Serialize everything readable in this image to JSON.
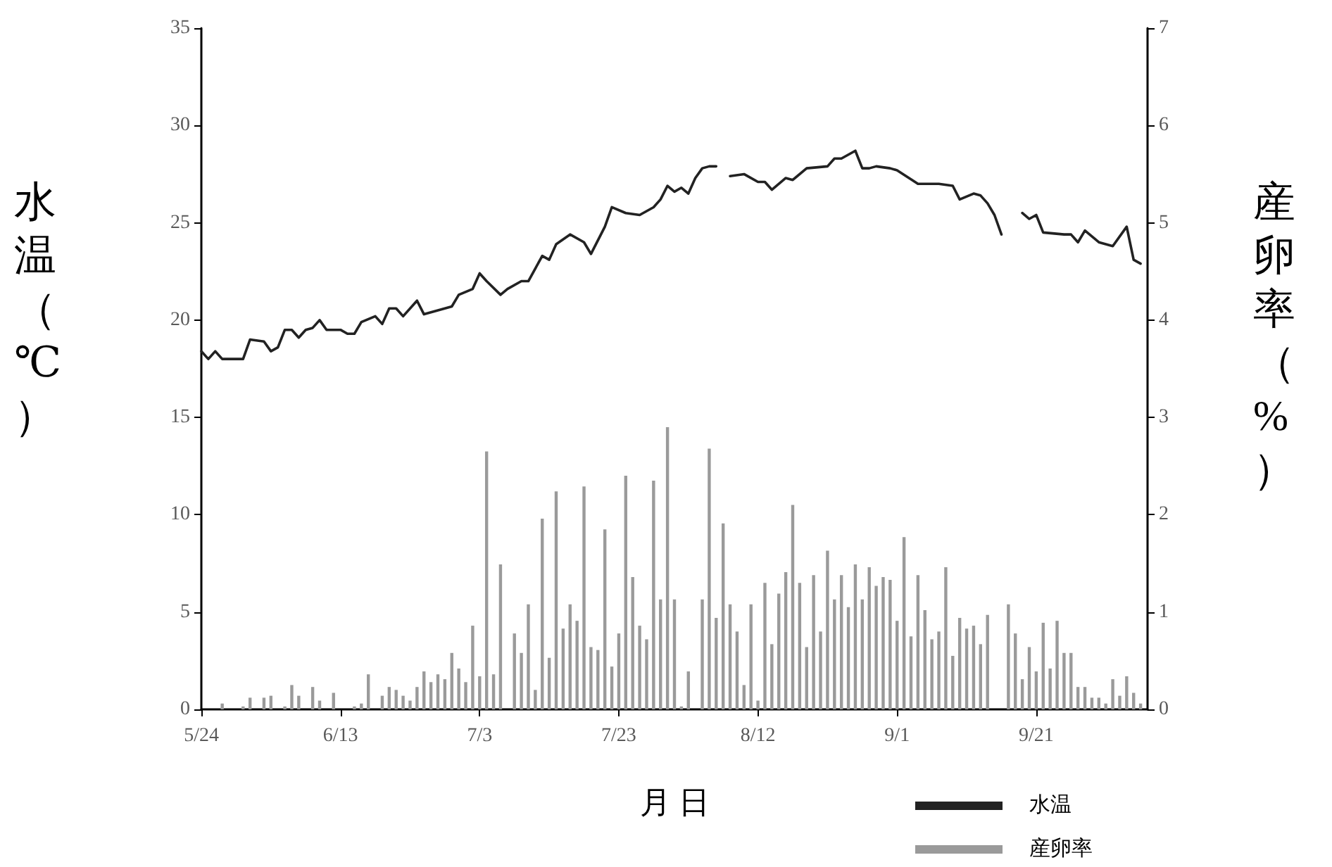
{
  "chart_data": {
    "type": "line",
    "xlabel": "月 日",
    "ylabel": "水温（℃）",
    "y2label": "産卵率（%）",
    "xlim": [
      "--05-24",
      "--10-07"
    ],
    "xticks": [
      {
        "value": "--05-24",
        "label": "5/24"
      },
      {
        "value": "--06-13",
        "label": "6/13"
      },
      {
        "value": "--07-03",
        "label": "7/3"
      },
      {
        "value": "--07-23",
        "label": "7/23"
      },
      {
        "value": "--08-12",
        "label": "8/12"
      },
      {
        "value": "--09-01",
        "label": "9/1"
      },
      {
        "value": "--09-21",
        "label": "9/21"
      }
    ],
    "ylim": [
      0,
      35
    ],
    "yticks": [
      0,
      5,
      10,
      15,
      20,
      25,
      30,
      35
    ],
    "y2lim": [
      0,
      7
    ],
    "y2ticks": [
      0,
      1,
      2,
      3,
      4,
      5,
      6,
      7
    ],
    "legend": "bottom right",
    "series": [
      {
        "name": "水温",
        "color": "#222222",
        "x": [
          "--05-24",
          "--05-25",
          "--05-26",
          "--05-27",
          "--05-30",
          "--05-31",
          "--06-02",
          "--06-03",
          "--06-04",
          "--06-05",
          "--06-06",
          "--06-07",
          "--06-08",
          "--06-09",
          "--06-10",
          "--06-11",
          "--06-13",
          "--06-14",
          "--06-15",
          "--06-16",
          "--06-18",
          "--06-19",
          "--06-20",
          "--06-21",
          "--06-22",
          "--06-24",
          "--06-25",
          "--06-27",
          "--06-29",
          "--06-30",
          "--07-02",
          "--07-03",
          "--07-04",
          "--07-06",
          "--07-07",
          "--07-09",
          "--07-10",
          "--07-12",
          "--07-13",
          "--07-14",
          "--07-16",
          "--07-18",
          "--07-19",
          "--07-21",
          "--07-22",
          "--07-24",
          "--07-26",
          "--07-28",
          "--07-29",
          "--07-30",
          "--07-31",
          "--08-01",
          "--08-02",
          "--08-03",
          "--08-04",
          "--08-05",
          "--08-06",
          "--08-07",
          "--08-08",
          "--08-10",
          "--08-12",
          "--08-13",
          "--08-14",
          "--08-16",
          "--08-17",
          "--08-19",
          "--08-22",
          "--08-23",
          "--08-24",
          "--08-26",
          "--08-27",
          "--08-28",
          "--08-29",
          "--08-31",
          "--09-01",
          "--09-04",
          "--09-07",
          "--09-09",
          "--09-10",
          "--09-12",
          "--09-13",
          "--09-14",
          "--09-15",
          "--09-16",
          "--09-17",
          "--09-19",
          "--09-20",
          "--09-21",
          "--09-22",
          "--09-25",
          "--09-26",
          "--09-27",
          "--09-28",
          "--09-30",
          "--10-02",
          "--10-04",
          "--10-05",
          "--10-06"
        ],
        "values": [
          18.4,
          18.0,
          18.4,
          18.0,
          18.0,
          19.0,
          18.9,
          18.4,
          18.6,
          19.5,
          19.5,
          19.1,
          19.5,
          19.6,
          20.0,
          19.5,
          19.5,
          19.3,
          19.3,
          19.9,
          20.2,
          19.8,
          20.6,
          20.6,
          20.2,
          21.0,
          20.3,
          20.5,
          20.7,
          21.3,
          21.6,
          22.4,
          22.0,
          21.3,
          21.6,
          22.0,
          22.0,
          23.3,
          23.1,
          23.9,
          24.4,
          24.0,
          23.4,
          24.8,
          25.8,
          25.5,
          25.4,
          25.8,
          26.2,
          26.9,
          26.6,
          26.8,
          26.5,
          27.3,
          27.8,
          27.9,
          27.9,
          null,
          27.4,
          27.5,
          27.1,
          27.1,
          26.7,
          27.3,
          27.2,
          27.8,
          27.9,
          28.3,
          28.3,
          28.7,
          27.8,
          27.8,
          27.9,
          27.8,
          27.7,
          27.0,
          27.0,
          26.9,
          26.2,
          26.5,
          26.4,
          26.0,
          25.4,
          24.4,
          null,
          25.5,
          25.2,
          25.4,
          24.5,
          24.4,
          24.4,
          24.0,
          24.6,
          24.0,
          23.8,
          24.8,
          23.1,
          22.9
        ]
      },
      {
        "name": "産卵率",
        "type": "bar",
        "axis": "y2",
        "color": "#9a9a9a",
        "x": [
          "--05-27",
          "--05-30",
          "--05-31",
          "--06-02",
          "--06-03",
          "--06-05",
          "--06-06",
          "--06-07",
          "--06-09",
          "--06-10",
          "--06-12",
          "--06-15",
          "--06-16",
          "--06-17",
          "--06-19",
          "--06-20",
          "--06-21",
          "--06-22",
          "--06-23",
          "--06-24",
          "--06-25",
          "--06-26",
          "--06-27",
          "--06-28",
          "--06-29",
          "--06-30",
          "--07-01",
          "--07-02",
          "--07-03",
          "--07-04",
          "--07-05",
          "--07-06",
          "--07-08",
          "--07-09",
          "--07-10",
          "--07-11",
          "--07-12",
          "--07-13",
          "--07-14",
          "--07-15",
          "--07-16",
          "--07-17",
          "--07-18",
          "--07-19",
          "--07-20",
          "--07-21",
          "--07-22",
          "--07-23",
          "--07-24",
          "--07-25",
          "--07-26",
          "--07-27",
          "--07-28",
          "--07-29",
          "--07-30",
          "--07-31",
          "--08-01",
          "--08-02",
          "--08-04",
          "--08-05",
          "--08-06",
          "--08-07",
          "--08-08",
          "--08-09",
          "--08-10",
          "--08-11",
          "--08-12",
          "--08-13",
          "--08-14",
          "--08-15",
          "--08-16",
          "--08-17",
          "--08-18",
          "--08-19",
          "--08-20",
          "--08-21",
          "--08-22",
          "--08-23",
          "--08-24",
          "--08-25",
          "--08-26",
          "--08-27",
          "--08-28",
          "--08-29",
          "--08-30",
          "--08-31",
          "--09-01",
          "--09-02",
          "--09-03",
          "--09-04",
          "--09-05",
          "--09-06",
          "--09-07",
          "--09-08",
          "--09-09",
          "--09-10",
          "--09-11",
          "--09-12",
          "--09-13",
          "--09-14",
          "--09-17",
          "--09-18",
          "--09-19",
          "--09-20",
          "--09-21",
          "--09-22",
          "--09-23",
          "--09-24",
          "--09-25",
          "--09-26",
          "--09-27",
          "--09-28",
          "--09-29",
          "--09-30",
          "--10-01",
          "--10-02",
          "--10-03",
          "--10-04",
          "--10-05",
          "--10-06"
        ],
        "values": [
          0.06,
          0.03,
          0.12,
          0.12,
          0.14,
          0.03,
          0.25,
          0.14,
          0.23,
          0.09,
          0.17,
          0.03,
          0.06,
          0.36,
          0.14,
          0.23,
          0.2,
          0.14,
          0.09,
          0.23,
          0.39,
          0.28,
          0.36,
          0.31,
          0.58,
          0.42,
          0.28,
          0.86,
          0.34,
          2.65,
          0.36,
          1.49,
          0.78,
          0.58,
          1.08,
          0.2,
          1.96,
          0.53,
          2.24,
          0.83,
          1.08,
          0.91,
          2.29,
          0.64,
          0.61,
          1.85,
          0.44,
          0.78,
          2.4,
          1.36,
          0.86,
          0.72,
          2.35,
          1.13,
          2.9,
          1.13,
          0.03,
          0.39,
          1.13,
          2.68,
          0.94,
          1.91,
          1.08,
          0.8,
          0.25,
          1.08,
          0.09,
          1.3,
          0.67,
          1.19,
          1.41,
          2.1,
          1.3,
          0.64,
          1.38,
          0.8,
          1.63,
          1.13,
          1.38,
          1.05,
          1.49,
          1.13,
          1.46,
          1.27,
          1.36,
          1.33,
          0.91,
          1.77,
          0.75,
          1.38,
          1.02,
          0.72,
          0.8,
          1.46,
          0.55,
          0.94,
          0.83,
          0.86,
          0.67,
          0.97,
          1.08,
          0.78,
          0.31,
          0.64,
          0.39,
          0.89,
          0.42,
          0.91,
          0.58,
          0.58,
          0.23,
          0.23,
          0.12,
          0.12,
          0.06,
          0.31,
          0.14,
          0.34,
          0.17,
          0.06
        ]
      }
    ]
  }
}
